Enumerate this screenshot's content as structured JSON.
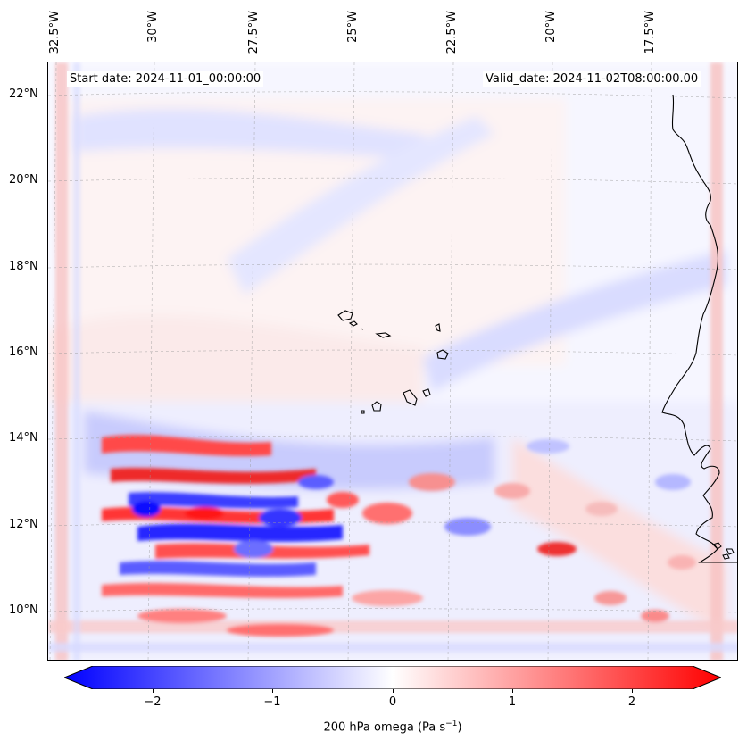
{
  "map": {
    "start_label": "Start date: 2024-11-01_00:00:00",
    "valid_label": "Valid_date: 2024-11-02T08:00:00.00",
    "lon_labels": [
      "32.5°W",
      "30°W",
      "27.5°W",
      "25°W",
      "22.5°W",
      "20°W",
      "17.5°W"
    ],
    "lat_labels": [
      "22°N",
      "20°N",
      "18°N",
      "16°N",
      "14°N",
      "12°N",
      "10°N"
    ],
    "extent": {
      "lon_min": -33.0,
      "lon_max": -15.0,
      "lat_min": 8.8,
      "lat_max": 22.8
    }
  },
  "colorbar": {
    "label_prefix": "200 hPa omega (Pa s",
    "label_exp": "−1",
    "label_suffix": ")",
    "ticks": [
      "−2",
      "−1",
      "0",
      "1",
      "2"
    ],
    "range": [
      -2.75,
      2.75
    ],
    "colors": {
      "negative": "#0000ff",
      "zero": "#ffffff",
      "positive": "#ff0000"
    }
  }
}
